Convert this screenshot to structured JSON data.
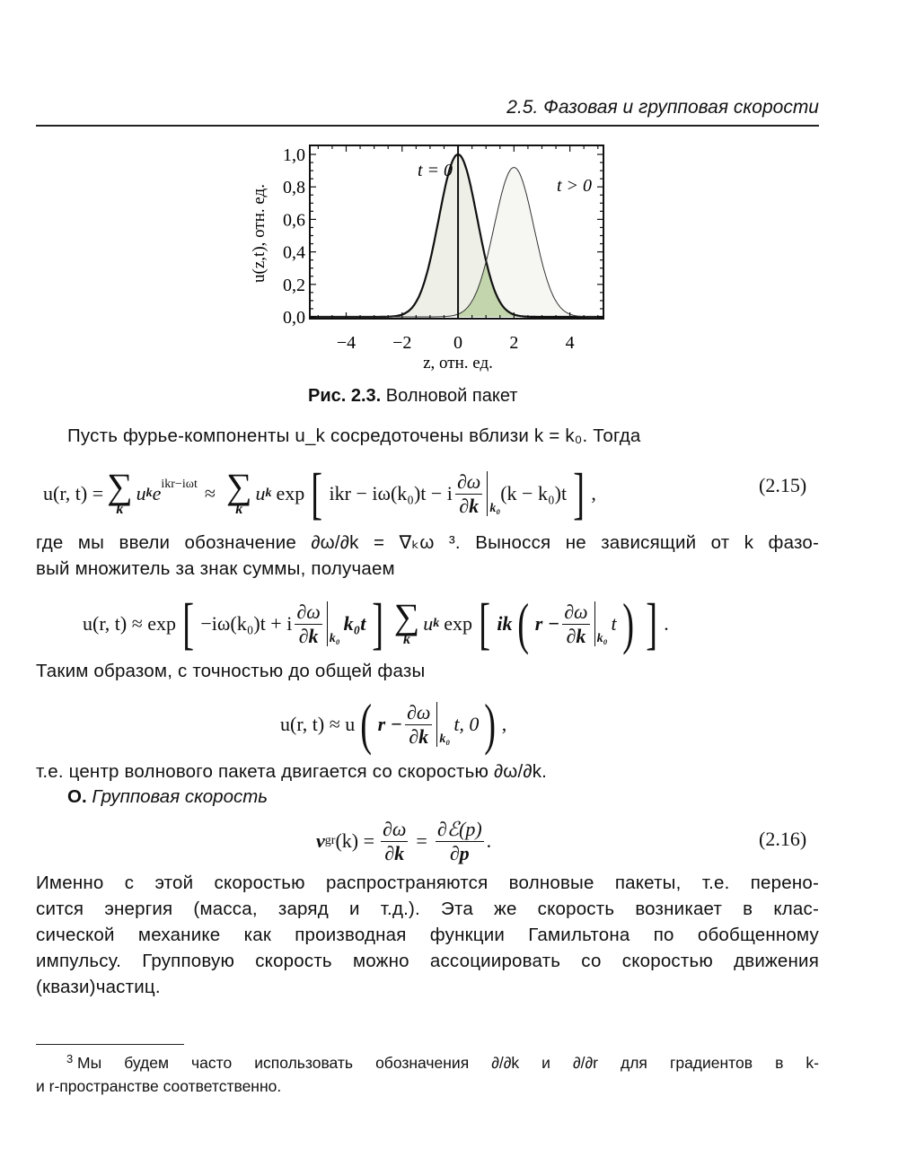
{
  "header": {
    "title": "2.5. Фазовая и групповая скорости"
  },
  "figure": {
    "caption_label": "Рис. 2.3.",
    "caption_text": "Волновой пакет"
  },
  "chart_data": {
    "type": "line",
    "title": "",
    "xlabel": "z, отн. ед.",
    "ylabel": "u(z,t), отн. ед.",
    "xlim": [
      -5.3,
      5.2
    ],
    "ylim": [
      0,
      1.05
    ],
    "x_ticks": [
      "−4",
      "−2",
      "0",
      "2",
      "4"
    ],
    "x_tick_values": [
      -4,
      -2,
      0,
      2,
      4
    ],
    "y_ticks": [
      "0,0",
      "0,2",
      "0,4",
      "0,6",
      "0,8",
      "1,0"
    ],
    "y_tick_values": [
      0,
      0.2,
      0.4,
      0.6,
      0.8,
      1.0
    ],
    "grid": false,
    "vertical_line_at": 0,
    "series": [
      {
        "name": "t = 0",
        "shape": "gaussian",
        "center": 0,
        "peak": 1.0,
        "width": 0.97,
        "stroke": "#111111",
        "fill": "#eef0e8"
      },
      {
        "name": "t > 0",
        "shape": "gaussian",
        "center": 2,
        "peak": 0.92,
        "width": 1.0,
        "stroke": "#333333",
        "fill": "#f6f7f2"
      }
    ],
    "overlap_fill": "#9fbf7a",
    "annotations": [
      "t = 0",
      "t > 0"
    ]
  },
  "text": {
    "p1": "Пусть фурье-компоненты u_k сосредоточены вблизи k = k₀. Тогда",
    "p2a": "где мы ввели обозначение ∂ω/∂k = ∇ₖω ³. Выносся не зависящий от k фазо-",
    "p2b": "вый множитель за знак суммы, получаем",
    "p3": "Таким образом, с точностью до общей фазы",
    "p4": "т.е. центр волнового пакета двигается со скоростью ∂ω/∂k.",
    "p5_mark": "О.",
    "p5_title": "Групповая скорость",
    "p6": [
      "Именно с этой скоростью распространяются волновые пакеты, т.е. перено-",
      "сится энергия (масса, заряд и т.д.). Эта же скорость возникает в клас-",
      "сической механике как производная функции Гамильтона по обобщенному",
      "импульсу. Групповую скорость можно ассоциировать со скоростью движения",
      "(квази)частиц."
    ]
  },
  "eq215": {
    "lhs": "u(r, t) =",
    "sum_sym": "∑",
    "sum_under": "k",
    "term1": "u",
    "term1_sub": "k",
    "term1_e": "e",
    "term1_sup": "ikr−iωt",
    "approx": "≈",
    "term2": "u",
    "term2_sub": "k",
    "exp": "exp",
    "lb": "[",
    "inner": "ikr − iω(k₀)t − i",
    "frac_num": "∂ω",
    "frac_den": "∂k",
    "bar_sub": "k₀",
    "tail": "(k − k₀)t",
    "rb": "]",
    "comma": ",",
    "number": "(2.15)"
  },
  "eq2": {
    "lhs": "u(r, t) ≈ exp",
    "lb": "[",
    "inner": "−iω(k₀)t + i",
    "frac_num": "∂ω",
    "frac_den": "∂k",
    "bar_sub": "k₀",
    "tail": "k₀t",
    "rb": "]",
    "sum_sym": "∑",
    "sum_under": "k",
    "term": "u",
    "term_sub": "k",
    "exp": "exp",
    "lb2": "[",
    "ik": "ik",
    "lp": "(",
    "r": "r −",
    "frac2_num": "∂ω",
    "frac2_den": "∂k",
    "bar2_sub": "k₀",
    "t": "t",
    "rp": ")",
    "rb2": "]",
    "dot": "."
  },
  "eq3": {
    "lhs": "u(r, t) ≈ u",
    "lp": "(",
    "r": "r −",
    "frac_num": "∂ω",
    "frac_den": "∂k",
    "bar_sub": "k₀",
    "tail": "t, 0",
    "rp": ")",
    "comma": ","
  },
  "eq216": {
    "lhs": "v",
    "lhs_sub": "gr",
    "lhs_arg": "(k) =",
    "frac1_num": "∂ω",
    "frac1_den": "∂k",
    "eq": "=",
    "frac2_num": "∂ℰ(p)",
    "frac2_den": "∂p",
    "dot": ".",
    "number": "(2.16)"
  },
  "footnote": {
    "mark": "3",
    "line1": "Мы будем часто использовать обозначения ∂/∂k и ∂/∂r для градиентов в k-",
    "line2": "и r-пространстве соответственно."
  }
}
